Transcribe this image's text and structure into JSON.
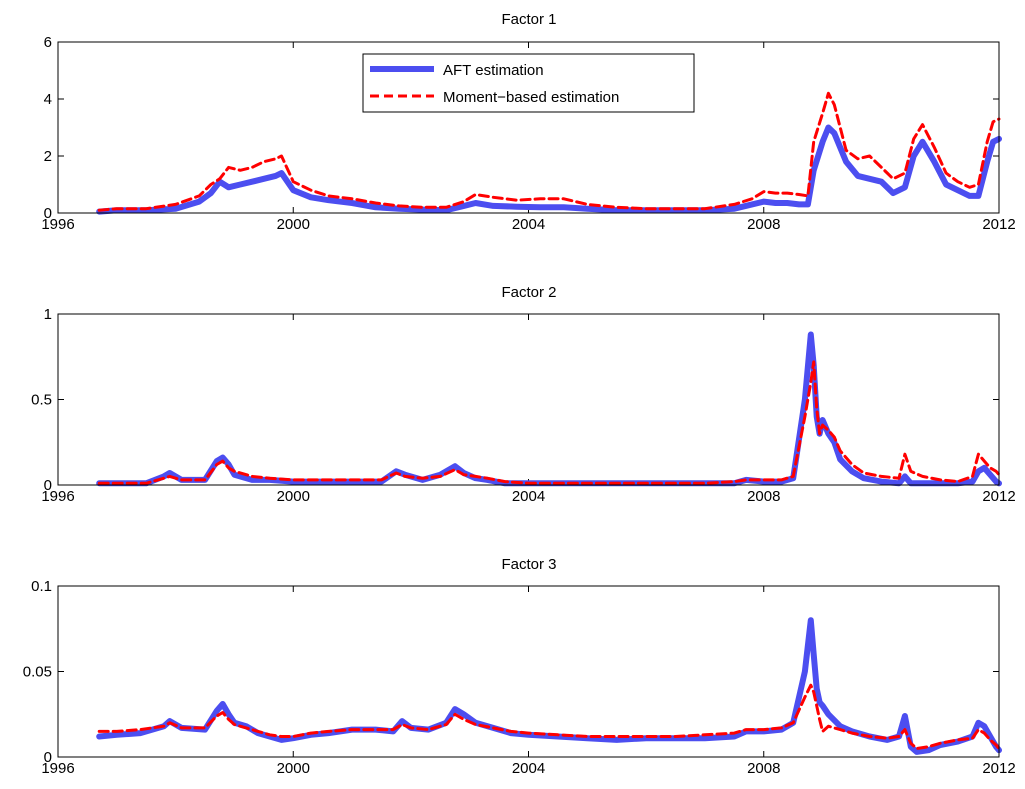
{
  "legend": {
    "placement": "top-center",
    "entries": [
      "AFT estimation",
      "Moment−based estimation"
    ]
  },
  "colors": {
    "aft": "#4c4ef0",
    "moment": "#ff0000"
  },
  "chart_data": [
    {
      "type": "line",
      "title": "Factor 1",
      "xlabel": "",
      "ylabel": "",
      "xlim": [
        1996,
        2012
      ],
      "ylim": [
        0,
        6
      ],
      "xticks": [
        1996,
        2000,
        2004,
        2008,
        2012
      ],
      "yticks": [
        0,
        2,
        4,
        6
      ],
      "grid": false,
      "has_legend": true,
      "series": [
        {
          "name": "AFT estimation",
          "style": "solid",
          "x": [
            1996.7,
            1997.0,
            1997.5,
            1998.0,
            1998.4,
            1998.6,
            1998.75,
            1998.9,
            1999.1,
            1999.3,
            1999.5,
            1999.7,
            1999.8,
            2000.0,
            2000.3,
            2000.6,
            2001.0,
            2001.4,
            2001.8,
            2002.2,
            2002.6,
            2002.9,
            2003.1,
            2003.4,
            2003.8,
            2004.2,
            2004.6,
            2005.0,
            2005.5,
            2006.0,
            2006.5,
            2007.0,
            2007.5,
            2007.8,
            2008.0,
            2008.2,
            2008.4,
            2008.6,
            2008.75,
            2008.85,
            2009.0,
            2009.1,
            2009.2,
            2009.4,
            2009.6,
            2009.8,
            2010.0,
            2010.2,
            2010.4,
            2010.55,
            2010.7,
            2010.9,
            2011.1,
            2011.3,
            2011.5,
            2011.65,
            2011.8,
            2011.9,
            2012.0
          ],
          "values": [
            0.05,
            0.1,
            0.1,
            0.15,
            0.4,
            0.7,
            1.1,
            0.9,
            1.0,
            1.1,
            1.2,
            1.3,
            1.4,
            0.8,
            0.55,
            0.45,
            0.35,
            0.2,
            0.15,
            0.12,
            0.1,
            0.25,
            0.35,
            0.25,
            0.22,
            0.2,
            0.2,
            0.15,
            0.1,
            0.1,
            0.1,
            0.1,
            0.15,
            0.3,
            0.4,
            0.35,
            0.35,
            0.3,
            0.3,
            1.5,
            2.5,
            3.0,
            2.8,
            1.8,
            1.3,
            1.2,
            1.1,
            0.7,
            0.9,
            2.0,
            2.5,
            1.8,
            1.0,
            0.8,
            0.6,
            0.6,
            1.8,
            2.5,
            2.6
          ]
        },
        {
          "name": "Moment−based estimation",
          "style": "dashed",
          "x": [
            1996.7,
            1997.0,
            1997.5,
            1998.0,
            1998.4,
            1998.6,
            1998.75,
            1998.9,
            1999.1,
            1999.3,
            1999.5,
            1999.7,
            1999.8,
            2000.0,
            2000.3,
            2000.6,
            2001.0,
            2001.4,
            2001.8,
            2002.2,
            2002.6,
            2002.9,
            2003.1,
            2003.4,
            2003.8,
            2004.2,
            2004.6,
            2005.0,
            2005.5,
            2006.0,
            2006.5,
            2007.0,
            2007.5,
            2007.8,
            2008.0,
            2008.2,
            2008.4,
            2008.6,
            2008.75,
            2008.85,
            2009.0,
            2009.1,
            2009.2,
            2009.4,
            2009.6,
            2009.8,
            2010.0,
            2010.2,
            2010.4,
            2010.55,
            2010.7,
            2010.9,
            2011.1,
            2011.3,
            2011.5,
            2011.65,
            2011.8,
            2011.9,
            2012.0
          ],
          "values": [
            0.1,
            0.15,
            0.15,
            0.3,
            0.6,
            1.0,
            1.2,
            1.6,
            1.5,
            1.6,
            1.8,
            1.9,
            2.0,
            1.1,
            0.8,
            0.6,
            0.5,
            0.35,
            0.25,
            0.2,
            0.2,
            0.4,
            0.65,
            0.55,
            0.45,
            0.5,
            0.5,
            0.3,
            0.2,
            0.15,
            0.15,
            0.15,
            0.3,
            0.5,
            0.75,
            0.7,
            0.7,
            0.65,
            0.6,
            2.5,
            3.5,
            4.2,
            3.8,
            2.2,
            1.9,
            2.0,
            1.6,
            1.2,
            1.4,
            2.6,
            3.1,
            2.3,
            1.4,
            1.1,
            0.9,
            1.0,
            2.5,
            3.2,
            3.3
          ]
        }
      ]
    },
    {
      "type": "line",
      "title": "Factor 2",
      "xlabel": "",
      "ylabel": "",
      "xlim": [
        1996,
        2012
      ],
      "ylim": [
        0,
        1
      ],
      "xticks": [
        1996,
        2000,
        2004,
        2008,
        2012
      ],
      "yticks": [
        0,
        0.5,
        1
      ],
      "grid": false,
      "has_legend": false,
      "series": [
        {
          "name": "AFT estimation",
          "style": "solid",
          "x": [
            1996.7,
            1997.0,
            1997.5,
            1997.8,
            1997.9,
            1998.1,
            1998.5,
            1998.7,
            1998.8,
            1998.9,
            1999.0,
            1999.3,
            1999.6,
            2000.0,
            2000.5,
            2001.0,
            2001.5,
            2001.75,
            2001.9,
            2002.2,
            2002.5,
            2002.75,
            2002.9,
            2003.1,
            2003.3,
            2003.6,
            2004.0,
            2004.5,
            2005.0,
            2005.5,
            2006.0,
            2006.5,
            2007.0,
            2007.5,
            2007.7,
            2008.0,
            2008.3,
            2008.5,
            2008.7,
            2008.8,
            2008.85,
            2008.9,
            2008.95,
            2009.0,
            2009.1,
            2009.2,
            2009.3,
            2009.5,
            2009.7,
            2010.0,
            2010.3,
            2010.4,
            2010.5,
            2010.7,
            2011.0,
            2011.3,
            2011.55,
            2011.65,
            2011.75,
            2011.85,
            2011.95,
            2012.0
          ],
          "values": [
            0.01,
            0.01,
            0.01,
            0.05,
            0.07,
            0.03,
            0.03,
            0.14,
            0.16,
            0.12,
            0.06,
            0.03,
            0.03,
            0.02,
            0.02,
            0.02,
            0.02,
            0.08,
            0.06,
            0.03,
            0.06,
            0.11,
            0.07,
            0.04,
            0.03,
            0.01,
            0.01,
            0.01,
            0.01,
            0.01,
            0.01,
            0.01,
            0.01,
            0.01,
            0.03,
            0.02,
            0.02,
            0.04,
            0.5,
            0.88,
            0.7,
            0.4,
            0.3,
            0.38,
            0.3,
            0.25,
            0.15,
            0.08,
            0.04,
            0.02,
            0.01,
            0.05,
            0.01,
            0.01,
            0.01,
            0.01,
            0.02,
            0.08,
            0.1,
            0.06,
            0.02,
            0.01
          ]
        },
        {
          "name": "Moment−based estimation",
          "style": "dashed",
          "x": [
            1996.7,
            1997.0,
            1997.5,
            1997.8,
            1997.9,
            1998.1,
            1998.5,
            1998.7,
            1998.8,
            1998.9,
            1999.0,
            1999.3,
            1999.6,
            2000.0,
            2000.5,
            2001.0,
            2001.5,
            2001.75,
            2001.9,
            2002.2,
            2002.5,
            2002.75,
            2002.9,
            2003.1,
            2003.3,
            2003.6,
            2004.0,
            2004.5,
            2005.0,
            2005.5,
            2006.0,
            2006.5,
            2007.0,
            2007.5,
            2007.7,
            2008.0,
            2008.3,
            2008.5,
            2008.7,
            2008.8,
            2008.85,
            2008.9,
            2008.95,
            2009.0,
            2009.1,
            2009.2,
            2009.3,
            2009.5,
            2009.7,
            2010.0,
            2010.3,
            2010.4,
            2010.5,
            2010.7,
            2011.0,
            2011.3,
            2011.55,
            2011.65,
            2011.75,
            2011.85,
            2011.95,
            2012.0
          ],
          "values": [
            0.01,
            0.01,
            0.01,
            0.04,
            0.05,
            0.03,
            0.03,
            0.12,
            0.14,
            0.1,
            0.08,
            0.05,
            0.04,
            0.03,
            0.03,
            0.03,
            0.03,
            0.07,
            0.05,
            0.04,
            0.05,
            0.09,
            0.06,
            0.05,
            0.04,
            0.02,
            0.01,
            0.01,
            0.01,
            0.01,
            0.01,
            0.01,
            0.01,
            0.02,
            0.03,
            0.03,
            0.03,
            0.05,
            0.4,
            0.6,
            0.72,
            0.45,
            0.3,
            0.35,
            0.32,
            0.28,
            0.2,
            0.12,
            0.07,
            0.05,
            0.04,
            0.18,
            0.08,
            0.05,
            0.03,
            0.02,
            0.05,
            0.18,
            0.14,
            0.1,
            0.08,
            0.06
          ]
        }
      ]
    },
    {
      "type": "line",
      "title": "Factor 3",
      "xlabel": "",
      "ylabel": "",
      "xlim": [
        1996,
        2012
      ],
      "ylim": [
        0,
        0.1
      ],
      "xticks": [
        1996,
        2000,
        2004,
        2008,
        2012
      ],
      "yticks": [
        0,
        0.05,
        0.1
      ],
      "grid": false,
      "has_legend": false,
      "series": [
        {
          "name": "AFT estimation",
          "style": "solid",
          "x": [
            1996.7,
            1997.0,
            1997.4,
            1997.8,
            1997.9,
            1998.1,
            1998.5,
            1998.7,
            1998.8,
            1998.9,
            1999.0,
            1999.2,
            1999.4,
            1999.6,
            1999.8,
            2000.0,
            2000.3,
            2000.6,
            2001.0,
            2001.4,
            2001.7,
            2001.85,
            2002.0,
            2002.3,
            2002.6,
            2002.75,
            2002.9,
            2003.1,
            2003.4,
            2003.7,
            2004.0,
            2004.5,
            2005.0,
            2005.5,
            2006.0,
            2006.5,
            2007.0,
            2007.5,
            2007.7,
            2008.0,
            2008.3,
            2008.5,
            2008.7,
            2008.8,
            2008.85,
            2008.9,
            2008.95,
            2009.0,
            2009.1,
            2009.3,
            2009.5,
            2009.8,
            2010.1,
            2010.3,
            2010.4,
            2010.5,
            2010.6,
            2010.8,
            2011.0,
            2011.3,
            2011.55,
            2011.65,
            2011.75,
            2011.85,
            2011.95,
            2012.0
          ],
          "values": [
            0.012,
            0.013,
            0.014,
            0.018,
            0.021,
            0.017,
            0.016,
            0.027,
            0.031,
            0.025,
            0.02,
            0.018,
            0.014,
            0.012,
            0.01,
            0.011,
            0.013,
            0.014,
            0.016,
            0.016,
            0.015,
            0.021,
            0.017,
            0.016,
            0.02,
            0.028,
            0.025,
            0.02,
            0.017,
            0.014,
            0.013,
            0.012,
            0.011,
            0.01,
            0.011,
            0.011,
            0.011,
            0.012,
            0.015,
            0.015,
            0.016,
            0.02,
            0.05,
            0.08,
            0.06,
            0.04,
            0.032,
            0.03,
            0.025,
            0.018,
            0.015,
            0.012,
            0.01,
            0.012,
            0.024,
            0.006,
            0.003,
            0.004,
            0.007,
            0.009,
            0.012,
            0.02,
            0.018,
            0.012,
            0.006,
            0.004
          ]
        },
        {
          "name": "Moment−based estimation",
          "style": "dashed",
          "x": [
            1996.7,
            1997.0,
            1997.4,
            1997.8,
            1997.9,
            1998.1,
            1998.5,
            1998.7,
            1998.8,
            1998.9,
            1999.0,
            1999.2,
            1999.4,
            1999.6,
            1999.8,
            2000.0,
            2000.3,
            2000.6,
            2001.0,
            2001.4,
            2001.7,
            2001.85,
            2002.0,
            2002.3,
            2002.6,
            2002.75,
            2002.9,
            2003.1,
            2003.4,
            2003.7,
            2004.0,
            2004.5,
            2005.0,
            2005.5,
            2006.0,
            2006.5,
            2007.0,
            2007.5,
            2007.7,
            2008.0,
            2008.3,
            2008.5,
            2008.7,
            2008.8,
            2008.85,
            2008.9,
            2008.95,
            2009.0,
            2009.1,
            2009.3,
            2009.5,
            2009.8,
            2010.1,
            2010.3,
            2010.4,
            2010.5,
            2010.6,
            2010.8,
            2011.0,
            2011.3,
            2011.55,
            2011.65,
            2011.75,
            2011.85,
            2011.95,
            2012.0
          ],
          "values": [
            0.015,
            0.015,
            0.016,
            0.018,
            0.02,
            0.017,
            0.017,
            0.024,
            0.026,
            0.022,
            0.019,
            0.017,
            0.015,
            0.013,
            0.012,
            0.012,
            0.014,
            0.015,
            0.016,
            0.016,
            0.016,
            0.019,
            0.017,
            0.016,
            0.019,
            0.025,
            0.022,
            0.019,
            0.017,
            0.015,
            0.014,
            0.013,
            0.012,
            0.012,
            0.012,
            0.012,
            0.013,
            0.014,
            0.016,
            0.016,
            0.017,
            0.02,
            0.035,
            0.042,
            0.038,
            0.03,
            0.022,
            0.015,
            0.018,
            0.016,
            0.014,
            0.012,
            0.011,
            0.012,
            0.016,
            0.008,
            0.005,
            0.006,
            0.008,
            0.01,
            0.011,
            0.016,
            0.014,
            0.01,
            0.007,
            0.005
          ]
        }
      ]
    }
  ]
}
